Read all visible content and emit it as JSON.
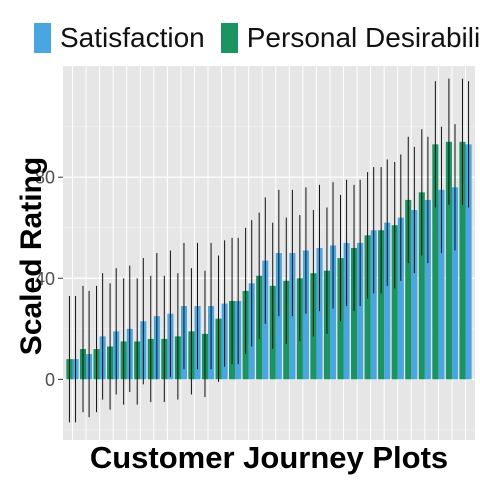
{
  "chart_data": {
    "type": "bar",
    "title": "",
    "xlabel": "Customer Journey Plots",
    "ylabel": "Scaled Rating",
    "ylim": [
      -24,
      124
    ],
    "yticks": [
      0,
      40,
      80
    ],
    "ytick_labels": [
      "0",
      "40",
      "80"
    ],
    "grid": true,
    "legend": "top",
    "error_bars": true,
    "series": [
      {
        "name": "Satisfaction",
        "color": "#4aa6e0",
        "values": [
          8,
          10,
          17,
          19,
          20,
          23,
          25,
          26,
          29,
          29,
          29,
          30,
          31,
          38,
          47,
          50,
          50,
          51,
          52,
          53,
          54,
          54,
          59,
          62,
          64,
          67,
          71,
          75,
          76,
          93
        ],
        "err_low": [
          -17,
          -15,
          -8,
          -6,
          -5,
          -2,
          0,
          1,
          4,
          4,
          4,
          5,
          6,
          13,
          22,
          25,
          25,
          26,
          27,
          28,
          29,
          29,
          34,
          37,
          39,
          42,
          46,
          50,
          51,
          68
        ],
        "err_high": [
          33,
          35,
          42,
          44,
          45,
          48,
          50,
          51,
          54,
          54,
          54,
          55,
          56,
          63,
          72,
          75,
          75,
          76,
          77,
          78,
          79,
          79,
          84,
          87,
          89,
          92,
          96,
          100,
          101,
          118
        ]
      },
      {
        "name": "Personal Desirability",
        "color": "#1b9462",
        "values": [
          8,
          12,
          12,
          13,
          15,
          15,
          16,
          16,
          17,
          19,
          18,
          24,
          31,
          35,
          41,
          37,
          39,
          40,
          42,
          43,
          48,
          52,
          57,
          59,
          61,
          71,
          74,
          93,
          94,
          94
        ],
        "err_low": [
          -17,
          -13,
          -13,
          -12,
          -10,
          -10,
          -9,
          -9,
          -8,
          -6,
          -7,
          -1,
          6,
          10,
          16,
          12,
          14,
          15,
          17,
          18,
          23,
          27,
          32,
          34,
          36,
          46,
          49,
          68,
          69,
          69
        ],
        "err_high": [
          33,
          37,
          37,
          38,
          40,
          40,
          41,
          41,
          42,
          44,
          43,
          49,
          56,
          60,
          66,
          62,
          64,
          65,
          67,
          68,
          73,
          77,
          82,
          84,
          86,
          96,
          99,
          118,
          119,
          119
        ]
      }
    ]
  }
}
